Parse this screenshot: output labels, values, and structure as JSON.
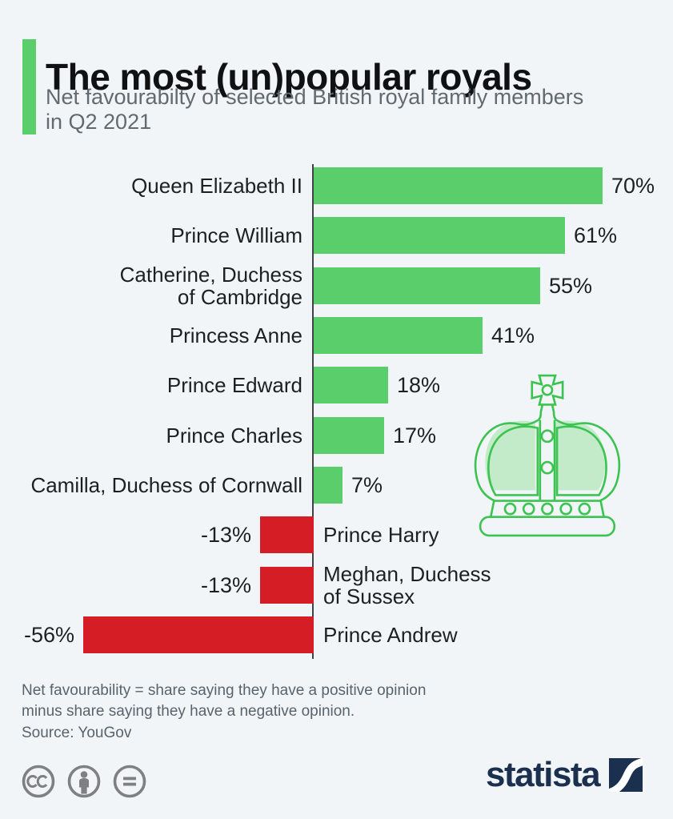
{
  "chart_data": {
    "type": "bar",
    "orientation": "horizontal",
    "title": "The most (un)popular royals",
    "subtitle": "Net favourabilty of selected British royal family members\nin Q2 2021",
    "categories": [
      "Queen Elizabeth II",
      "Prince William",
      "Catherine, Duchess\nof Cambridge",
      "Princess Anne",
      "Prince Edward",
      "Prince Charles",
      "Camilla, Duchess of Cornwall",
      "Prince Harry",
      "Meghan, Duchess\nof Sussex",
      "Prince Andrew"
    ],
    "values": [
      70,
      61,
      55,
      41,
      18,
      17,
      7,
      -13,
      -13,
      -56
    ],
    "value_labels": [
      "70%",
      "61%",
      "55%",
      "41%",
      "18%",
      "17%",
      "7%",
      "-13%",
      "-13%",
      "-56%"
    ],
    "unit": "% net favourability",
    "xlim": [
      -60,
      75
    ],
    "grid": false,
    "legend": false,
    "positive_color": "#5bce6c",
    "negative_color": "#d41d25",
    "axis_color": "#3e4347"
  },
  "colors": {
    "background": "#f1f5f8",
    "accent_green": "#5bce6c",
    "bar_red": "#d41d25",
    "crown_stroke": "#3cc352",
    "crown_fill": "#c3ebc9",
    "brand_navy": "#1b2f4e",
    "text_dark": "#101113",
    "text_gray": "#62696f",
    "license_gray": "#7e8083"
  },
  "footer": {
    "note": "Net favourability = share saying they have a positive opinion\nminus share saying they have a negative opinion.",
    "source": "Source: YouGov",
    "brand": "statista"
  },
  "icons": {
    "decoration": "crown-icon",
    "license": [
      "cc-icon",
      "attribution-icon",
      "no-derivatives-icon"
    ],
    "brand_mark": "statista-logo-mark"
  }
}
